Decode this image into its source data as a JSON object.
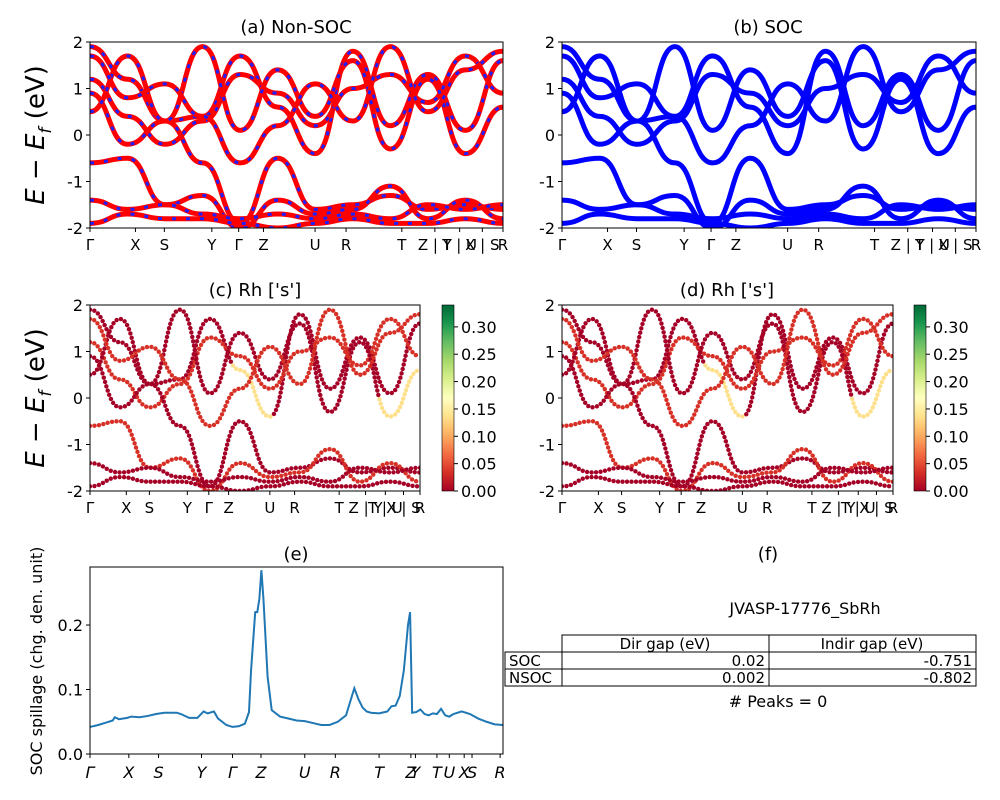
{
  "panels": {
    "a": {
      "title": "(a) Non-SOC",
      "ylabel": "E − E_f (eV)",
      "ylim": [
        -2,
        2
      ],
      "yticks": [
        -2,
        -1,
        0,
        1,
        2
      ],
      "kpoint_labels": [
        "Γ",
        "X",
        "S",
        "Y",
        "Γ",
        "Z",
        "U",
        "R",
        "T",
        "Z | Y",
        "T | U",
        "X | S",
        "R"
      ]
    },
    "b": {
      "title": "(b) SOC",
      "ylim": [
        -2,
        2
      ],
      "yticks": [
        -2,
        -1,
        0,
        1,
        2
      ],
      "kpoint_labels": [
        "Γ",
        "X",
        "S",
        "Y",
        "Γ",
        "Z",
        "U",
        "R",
        "T",
        "Z | Y",
        "T | U",
        "X | S",
        "R"
      ]
    },
    "c": {
      "title": "(c)  Rh ['s']",
      "ylabel": "E − E_f (eV)",
      "ylim": [
        -2,
        2
      ],
      "yticks": [
        -2,
        -1,
        0,
        1,
        2
      ],
      "kpoint_labels": [
        "Γ",
        "X",
        "S",
        "Y",
        "Γ",
        "Z",
        "U",
        "R",
        "T",
        "Z | Y",
        "T | U",
        "X | S",
        "R"
      ],
      "colorbar_ticks": [
        "0.00",
        "0.05",
        "0.10",
        "0.15",
        "0.20",
        "0.25",
        "0.30"
      ]
    },
    "d": {
      "title": "(d) Rh ['s']",
      "ylim": [
        -2,
        2
      ],
      "yticks": [
        -2,
        -1,
        0,
        1,
        2
      ],
      "kpoint_labels": [
        "Γ",
        "X",
        "S",
        "Y",
        "Γ",
        "Z",
        "U",
        "R",
        "T",
        "Z | Y",
        "T | U",
        "X | S",
        "R"
      ],
      "colorbar_ticks": [
        "0.00",
        "0.05",
        "0.10",
        "0.15",
        "0.20",
        "0.25",
        "0.30"
      ]
    },
    "e": {
      "title": "(e)",
      "ylabel": "SOC spillage (chg. den. unit)",
      "kpoint_labels": [
        "Γ",
        "X",
        "S",
        "Y",
        "Γ",
        "Z",
        "U",
        "R",
        "T",
        "Z",
        "Y",
        "T",
        "U",
        "X",
        "S",
        "R"
      ]
    },
    "f": {
      "title": "(f)",
      "material_id": "JVASP-17776_SbRh",
      "table": {
        "columns": [
          "Dir gap (eV)",
          "Indir gap (eV)"
        ],
        "rows": [
          {
            "label": "SOC",
            "values": [
              "0.02",
              "-0.751"
            ]
          },
          {
            "label": "NSOC",
            "values": [
              "0.002",
              "-0.802"
            ]
          }
        ]
      },
      "peaks_text": "# Peaks = 0"
    }
  },
  "colors": {
    "nonsoc_line": "#ff0000",
    "nonsoc_dash": "#1f1fff",
    "soc_line": "#0000ff",
    "spillage_line": "#1f77b4",
    "colormap": [
      "#a50026",
      "#d73027",
      "#f46d43",
      "#fdae61",
      "#fee08b",
      "#ffffbf",
      "#d9ef8b",
      "#a6d96a",
      "#66bd63",
      "#1a9850",
      "#006837"
    ]
  },
  "chart_data": [
    {
      "type": "line",
      "title": "(e)",
      "ylabel": "SOC spillage (chg. den. unit)",
      "ylim": [
        0.0,
        0.29
      ],
      "yticks": [
        0.0,
        0.1,
        0.2
      ],
      "x_labels": [
        "Γ",
        "X",
        "S",
        "Y",
        "Γ",
        "Z",
        "U",
        "R",
        "T",
        "Z",
        "Y",
        "T",
        "U",
        "X",
        "S",
        "R"
      ],
      "x_label_positions": [
        0,
        0.094,
        0.166,
        0.27,
        0.345,
        0.414,
        0.52,
        0.594,
        0.7,
        0.777,
        0.788,
        0.84,
        0.87,
        0.906,
        0.925,
        0.993
      ],
      "x": [
        0,
        0.02,
        0.04,
        0.055,
        0.06,
        0.07,
        0.09,
        0.1,
        0.12,
        0.14,
        0.16,
        0.18,
        0.2,
        0.21,
        0.22,
        0.24,
        0.26,
        0.275,
        0.285,
        0.3,
        0.31,
        0.32,
        0.33,
        0.345,
        0.36,
        0.375,
        0.385,
        0.39,
        0.4,
        0.405,
        0.41,
        0.415,
        0.42,
        0.43,
        0.44,
        0.46,
        0.48,
        0.5,
        0.52,
        0.54,
        0.56,
        0.58,
        0.6,
        0.62,
        0.64,
        0.65,
        0.66,
        0.67,
        0.68,
        0.7,
        0.72,
        0.73,
        0.74,
        0.75,
        0.76,
        0.77,
        0.775,
        0.78,
        0.79,
        0.8,
        0.81,
        0.82,
        0.83,
        0.84,
        0.85,
        0.86,
        0.87,
        0.88,
        0.9,
        0.92,
        0.94,
        0.96,
        0.98,
        1.0
      ],
      "y": [
        0.042,
        0.045,
        0.049,
        0.052,
        0.057,
        0.054,
        0.056,
        0.058,
        0.057,
        0.059,
        0.062,
        0.064,
        0.064,
        0.064,
        0.062,
        0.056,
        0.056,
        0.066,
        0.063,
        0.066,
        0.055,
        0.05,
        0.045,
        0.042,
        0.043,
        0.047,
        0.065,
        0.13,
        0.22,
        0.22,
        0.24,
        0.285,
        0.24,
        0.12,
        0.068,
        0.058,
        0.055,
        0.052,
        0.051,
        0.048,
        0.045,
        0.045,
        0.05,
        0.06,
        0.102,
        0.085,
        0.072,
        0.066,
        0.064,
        0.063,
        0.066,
        0.074,
        0.075,
        0.09,
        0.13,
        0.2,
        0.22,
        0.064,
        0.065,
        0.069,
        0.062,
        0.06,
        0.063,
        0.062,
        0.07,
        0.06,
        0.058,
        0.062,
        0.066,
        0.062,
        0.055,
        0.05,
        0.046,
        0.045
      ]
    },
    {
      "type": "table",
      "title": "(f)",
      "columns": [
        "",
        "Dir gap (eV)",
        "Indir gap (eV)"
      ],
      "rows": [
        [
          "SOC",
          "0.02",
          "-0.751"
        ],
        [
          "NSOC",
          "0.002",
          "-0.802"
        ]
      ]
    }
  ]
}
